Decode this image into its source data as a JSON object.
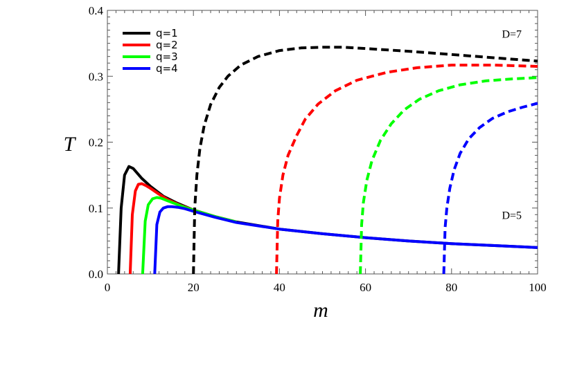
{
  "chart_data": {
    "type": "line",
    "title": "",
    "xlabel": "m",
    "ylabel": "T",
    "xlim": [
      0,
      100
    ],
    "ylim": [
      0,
      0.4
    ],
    "x_ticks": [
      "0",
      "20",
      "40",
      "60",
      "80",
      "100"
    ],
    "y_ticks": [
      "0.0",
      "0.1",
      "0.2",
      "0.3",
      "0.4"
    ],
    "legend_position": "top-left",
    "annotations": [
      {
        "text": "D=7",
        "x": 94,
        "y": 0.365
      },
      {
        "text": "D=5",
        "x": 94,
        "y": 0.09
      }
    ],
    "series": [
      {
        "name": "q=1",
        "group": "D=5",
        "color": "#000000",
        "style": "solid",
        "x": [
          2.6,
          3.2,
          4.0,
          5.0,
          6.0,
          8.0,
          10.0,
          13.0,
          16.0,
          20.0,
          25.0,
          30.0,
          40.0,
          50.0,
          60.0,
          70.0,
          80.0,
          90.0,
          100.0
        ],
        "y": [
          0.0,
          0.1,
          0.15,
          0.163,
          0.16,
          0.145,
          0.133,
          0.118,
          0.108,
          0.097,
          0.087,
          0.079,
          0.068,
          0.061,
          0.055,
          0.05,
          0.046,
          0.043,
          0.04
        ]
      },
      {
        "name": "q=2",
        "group": "D=5",
        "color": "#ff0000",
        "style": "solid",
        "x": [
          5.3,
          5.8,
          6.5,
          7.2,
          8.0,
          9.0,
          10.0,
          12.0,
          14.0,
          17.0,
          20.0,
          25.0,
          30.0
        ],
        "y": [
          0.0,
          0.09,
          0.126,
          0.136,
          0.137,
          0.134,
          0.13,
          0.121,
          0.113,
          0.104,
          0.097,
          0.087,
          0.079
        ]
      },
      {
        "name": "q=3",
        "group": "D=5",
        "color": "#00ff00",
        "style": "solid",
        "x": [
          8.2,
          8.8,
          9.5,
          10.5,
          11.5,
          12.5,
          14.0,
          16.0,
          18.0,
          20.0,
          25.0,
          30.0
        ],
        "y": [
          0.0,
          0.08,
          0.105,
          0.114,
          0.116,
          0.115,
          0.111,
          0.106,
          0.101,
          0.097,
          0.087,
          0.079
        ]
      },
      {
        "name": "q=4",
        "group": "D=5",
        "color": "#0000ff",
        "style": "solid",
        "x": [
          11.0,
          11.5,
          12.2,
          13.0,
          14.0,
          15.0,
          16.5,
          18.0,
          20.0,
          25.0,
          30.0,
          40.0,
          50.0,
          60.0,
          70.0,
          80.0,
          90.0,
          100.0
        ],
        "y": [
          0.0,
          0.075,
          0.094,
          0.1,
          0.102,
          0.102,
          0.101,
          0.099,
          0.095,
          0.086,
          0.078,
          0.068,
          0.061,
          0.055,
          0.05,
          0.046,
          0.043,
          0.04
        ]
      },
      {
        "name": "q=1",
        "group": "D=7",
        "color": "#000000",
        "style": "dashed",
        "x": [
          20.0,
          20.3,
          20.8,
          21.5,
          22.5,
          24.0,
          26.0,
          28.0,
          31.0,
          35.0,
          40.0,
          45.0,
          50.0,
          55.0,
          60.0,
          70.0,
          80.0,
          90.0,
          100.0
        ],
        "y": [
          0.0,
          0.1,
          0.15,
          0.19,
          0.225,
          0.257,
          0.283,
          0.3,
          0.317,
          0.33,
          0.339,
          0.343,
          0.344,
          0.344,
          0.342,
          0.338,
          0.333,
          0.328,
          0.323
        ]
      },
      {
        "name": "q=2",
        "group": "D=7",
        "color": "#ff0000",
        "style": "dashed",
        "x": [
          39.3,
          39.6,
          40.0,
          40.8,
          42.0,
          44.0,
          46.0,
          49.0,
          53.0,
          58.0,
          65.0,
          72.0,
          80.0,
          90.0,
          100.0
        ],
        "y": [
          0.0,
          0.08,
          0.115,
          0.15,
          0.18,
          0.21,
          0.235,
          0.258,
          0.278,
          0.294,
          0.306,
          0.313,
          0.317,
          0.317,
          0.315
        ]
      },
      {
        "name": "q=3",
        "group": "D=7",
        "color": "#00ff00",
        "style": "dashed",
        "x": [
          58.8,
          59.1,
          59.5,
          60.3,
          61.5,
          63.5,
          66.0,
          69.0,
          72.5,
          77.0,
          82.0,
          88.0,
          94.0,
          100.0
        ],
        "y": [
          0.0,
          0.075,
          0.108,
          0.142,
          0.172,
          0.203,
          0.228,
          0.249,
          0.265,
          0.278,
          0.287,
          0.293,
          0.296,
          0.298
        ]
      },
      {
        "name": "q=4",
        "group": "D=7",
        "color": "#0000ff",
        "style": "dashed",
        "x": [
          78.2,
          78.5,
          78.9,
          79.6,
          80.6,
          82.0,
          84.0,
          86.5,
          89.5,
          93.0,
          96.5,
          100.0
        ],
        "y": [
          0.0,
          0.07,
          0.1,
          0.13,
          0.158,
          0.183,
          0.205,
          0.222,
          0.236,
          0.246,
          0.253,
          0.259
        ]
      }
    ]
  }
}
